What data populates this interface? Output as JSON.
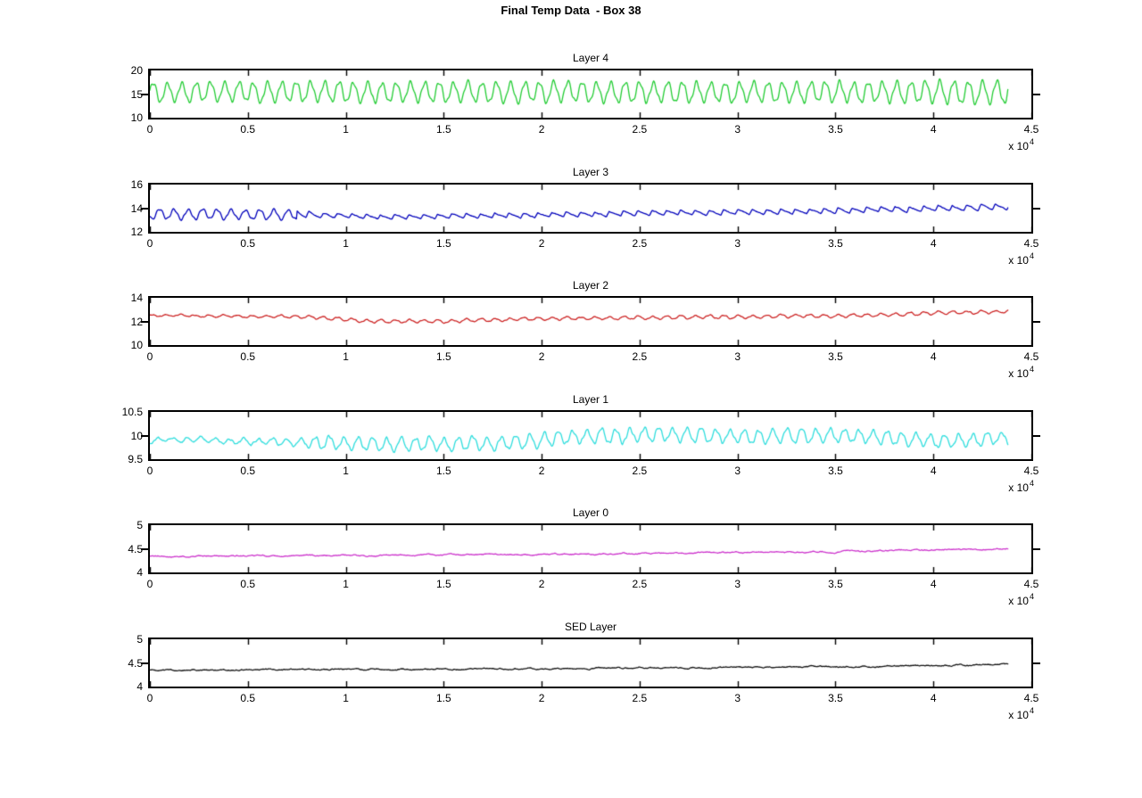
{
  "figure": {
    "title": "Final Temp Data  - Box 38",
    "background": "#ffffff",
    "axis_color": "#000000"
  },
  "x_scale": {
    "mantissa": "x 10",
    "exponent": "4"
  },
  "chart_data": [
    {
      "type": "line",
      "title": "Layer 4",
      "color": "#22cc33",
      "ylim": [
        10,
        20
      ],
      "ytick_values": [
        10,
        15,
        20
      ],
      "ytick_labels": [
        "10",
        "15",
        "20"
      ],
      "xlim": [
        0,
        45000
      ],
      "xtick_values": [
        0,
        5000,
        10000,
        15000,
        20000,
        25000,
        30000,
        35000,
        40000,
        45000
      ],
      "xtick_labels": [
        "0",
        "0.5",
        "1",
        "1.5",
        "2",
        "2.5",
        "3",
        "3.5",
        "4",
        "4.5"
      ],
      "x_end": 43800,
      "grid": false,
      "series": {
        "period": 730,
        "waveform": "sine",
        "transition_x": 0,
        "seed": 7,
        "noise": 0.3,
        "baseline": [
          [
            0,
            15.4
          ],
          [
            43800,
            15.4
          ]
        ],
        "amplitude": [
          [
            0,
            2.45
          ],
          [
            20000,
            2.5
          ],
          [
            36000,
            2.5
          ],
          [
            41000,
            2.8
          ],
          [
            43800,
            2.9
          ]
        ]
      }
    },
    {
      "type": "line",
      "title": "Layer 3",
      "color": "#0000bb",
      "ylim": [
        12,
        16
      ],
      "ytick_values": [
        12,
        14,
        16
      ],
      "ytick_labels": [
        "12",
        "14",
        "16"
      ],
      "xlim": [
        0,
        45000
      ],
      "xtick_values": [
        0,
        5000,
        10000,
        15000,
        20000,
        25000,
        30000,
        35000,
        40000,
        45000
      ],
      "xtick_labels": [
        "0",
        "0.5",
        "1",
        "1.5",
        "2",
        "2.5",
        "3",
        "3.5",
        "4",
        "4.5"
      ],
      "x_end": 43800,
      "grid": false,
      "series": {
        "period": 730,
        "waveform": "spike",
        "transition_x": 7500,
        "seed": 13,
        "noise": 0.08,
        "baseline": [
          [
            0,
            13.55
          ],
          [
            7500,
            13.42
          ],
          [
            12000,
            13.2
          ],
          [
            17000,
            13.3
          ],
          [
            25000,
            13.5
          ],
          [
            33000,
            13.65
          ],
          [
            43800,
            14.05
          ]
        ],
        "amplitude": [
          [
            0,
            0.5
          ],
          [
            7000,
            0.5
          ],
          [
            8600,
            0.18
          ],
          [
            43800,
            0.24
          ]
        ]
      }
    },
    {
      "type": "line",
      "title": "Layer 2",
      "color": "#cc2222",
      "ylim": [
        10,
        14
      ],
      "ytick_values": [
        10,
        12,
        14
      ],
      "ytick_labels": [
        "10",
        "12",
        "14"
      ],
      "xlim": [
        0,
        45000
      ],
      "xtick_values": [
        0,
        5000,
        10000,
        15000,
        20000,
        25000,
        30000,
        35000,
        40000,
        45000
      ],
      "xtick_labels": [
        "0",
        "0.5",
        "1",
        "1.5",
        "2",
        "2.5",
        "3",
        "3.5",
        "4",
        "4.5"
      ],
      "x_end": 43800,
      "grid": false,
      "series": {
        "period": 730,
        "waveform": "sine",
        "transition_x": 0,
        "seed": 23,
        "noise": 0.07,
        "baseline": [
          [
            0,
            12.5
          ],
          [
            8000,
            12.4
          ],
          [
            11000,
            12.05
          ],
          [
            15000,
            12.0
          ],
          [
            20000,
            12.25
          ],
          [
            28000,
            12.35
          ],
          [
            36000,
            12.5
          ],
          [
            43800,
            12.85
          ]
        ],
        "amplitude": [
          [
            0,
            0.09
          ],
          [
            9000,
            0.15
          ],
          [
            43800,
            0.16
          ]
        ]
      }
    },
    {
      "type": "line",
      "title": "Layer 1",
      "color": "#2edddd",
      "ylim": [
        9.5,
        10.5
      ],
      "ytick_values": [
        9.5,
        10,
        10.5
      ],
      "ytick_labels": [
        "9.5",
        "10",
        "10.5"
      ],
      "xlim": [
        0,
        45000
      ],
      "xtick_values": [
        0,
        5000,
        10000,
        15000,
        20000,
        25000,
        30000,
        35000,
        40000,
        45000
      ],
      "xtick_labels": [
        "0",
        "0.5",
        "1",
        "1.5",
        "2",
        "2.5",
        "3",
        "3.5",
        "4",
        "4.5"
      ],
      "x_end": 43800,
      "grid": false,
      "series": {
        "period": 730,
        "waveform": "sine",
        "transition_x": 0,
        "seed": 31,
        "noise": 0.05,
        "baseline": [
          [
            0,
            9.9
          ],
          [
            7000,
            9.88
          ],
          [
            12000,
            9.82
          ],
          [
            18000,
            9.84
          ],
          [
            22000,
            9.97
          ],
          [
            26000,
            10.02
          ],
          [
            30000,
            9.97
          ],
          [
            36000,
            10.0
          ],
          [
            41000,
            9.87
          ],
          [
            43800,
            9.97
          ]
        ],
        "amplitude": [
          [
            0,
            0.06
          ],
          [
            7000,
            0.08
          ],
          [
            9000,
            0.16
          ],
          [
            26000,
            0.18
          ],
          [
            43800,
            0.15
          ]
        ]
      }
    },
    {
      "type": "line",
      "title": "Layer 0",
      "color": "#cc33cc",
      "ylim": [
        4,
        5
      ],
      "ytick_values": [
        4,
        4.5,
        5
      ],
      "ytick_labels": [
        "4",
        "4.5",
        "5"
      ],
      "xlim": [
        0,
        45000
      ],
      "xtick_values": [
        0,
        5000,
        10000,
        15000,
        20000,
        25000,
        30000,
        35000,
        40000,
        45000
      ],
      "xtick_labels": [
        "0",
        "0.5",
        "1",
        "1.5",
        "2",
        "2.5",
        "3",
        "3.5",
        "4",
        "4.5"
      ],
      "x_end": 43800,
      "grid": false,
      "series": {
        "period": 730,
        "waveform": "flat",
        "transition_x": 0,
        "seed": 41,
        "noise": 0.03,
        "baseline": [
          [
            0,
            4.34
          ],
          [
            20000,
            4.38
          ],
          [
            35000,
            4.44
          ],
          [
            43800,
            4.5
          ]
        ],
        "amplitude": [
          [
            0,
            0
          ]
        ]
      }
    },
    {
      "type": "line",
      "title": "SED Layer",
      "color": "#111111",
      "ylim": [
        4,
        5
      ],
      "ytick_values": [
        4,
        4.5,
        5
      ],
      "ytick_labels": [
        "4",
        "4.5",
        "5"
      ],
      "xlim": [
        0,
        45000
      ],
      "xtick_values": [
        0,
        5000,
        10000,
        15000,
        20000,
        25000,
        30000,
        35000,
        40000,
        45000
      ],
      "xtick_labels": [
        "0",
        "0.5",
        "1",
        "1.5",
        "2",
        "2.5",
        "3",
        "3.5",
        "4",
        "4.5"
      ],
      "x_end": 43800,
      "grid": false,
      "series": {
        "period": 730,
        "waveform": "flat",
        "transition_x": 0,
        "seed": 47,
        "noise": 0.03,
        "baseline": [
          [
            0,
            4.35
          ],
          [
            20000,
            4.38
          ],
          [
            35000,
            4.42
          ],
          [
            43800,
            4.47
          ]
        ],
        "amplitude": [
          [
            0,
            0
          ]
        ]
      }
    }
  ]
}
